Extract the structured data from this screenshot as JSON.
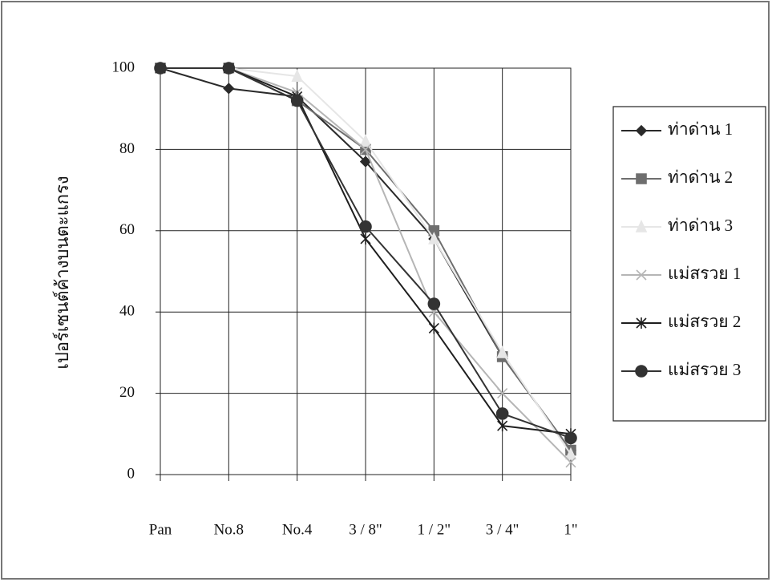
{
  "chart_data": {
    "type": "line",
    "y_label": "เปอร์เซนต์ค้างบนตะแกรง",
    "categories": [
      "Pan",
      "No.8",
      "No.4",
      "3 / 8\"",
      "1 / 2\"",
      "3 / 4\"",
      "1\""
    ],
    "ylim": [
      0,
      100
    ],
    "yticks": [
      0,
      20,
      40,
      60,
      80,
      100
    ],
    "grid": true,
    "legend": "right",
    "series": [
      {
        "name": "ท่าด่าน 1",
        "color": "#2a2a2a",
        "marker": "diamond",
        "values": [
          100,
          95,
          93,
          77,
          58,
          29,
          6
        ]
      },
      {
        "name": "ท่าด่าน 2",
        "color": "#6e6e6e",
        "marker": "square",
        "values": [
          100,
          100,
          92,
          80,
          60,
          29,
          6
        ]
      },
      {
        "name": "ท่าด่าน 3",
        "color": "#e6e6e6",
        "marker": "triangle",
        "values": [
          100,
          100,
          98,
          82,
          58,
          30,
          5
        ]
      },
      {
        "name": "แม่สรวย 1",
        "color": "#b5b5b5",
        "marker": "x",
        "values": [
          100,
          100,
          94,
          80,
          40,
          20,
          3
        ]
      },
      {
        "name": "แม่สรวย 2",
        "color": "#1e1e1e",
        "marker": "star",
        "values": [
          100,
          100,
          93,
          58,
          36,
          12,
          10
        ]
      },
      {
        "name": "แม่สรวย 3",
        "color": "#333333",
        "marker": "circle",
        "values": [
          100,
          100,
          92,
          61,
          42,
          15,
          9
        ]
      }
    ]
  }
}
